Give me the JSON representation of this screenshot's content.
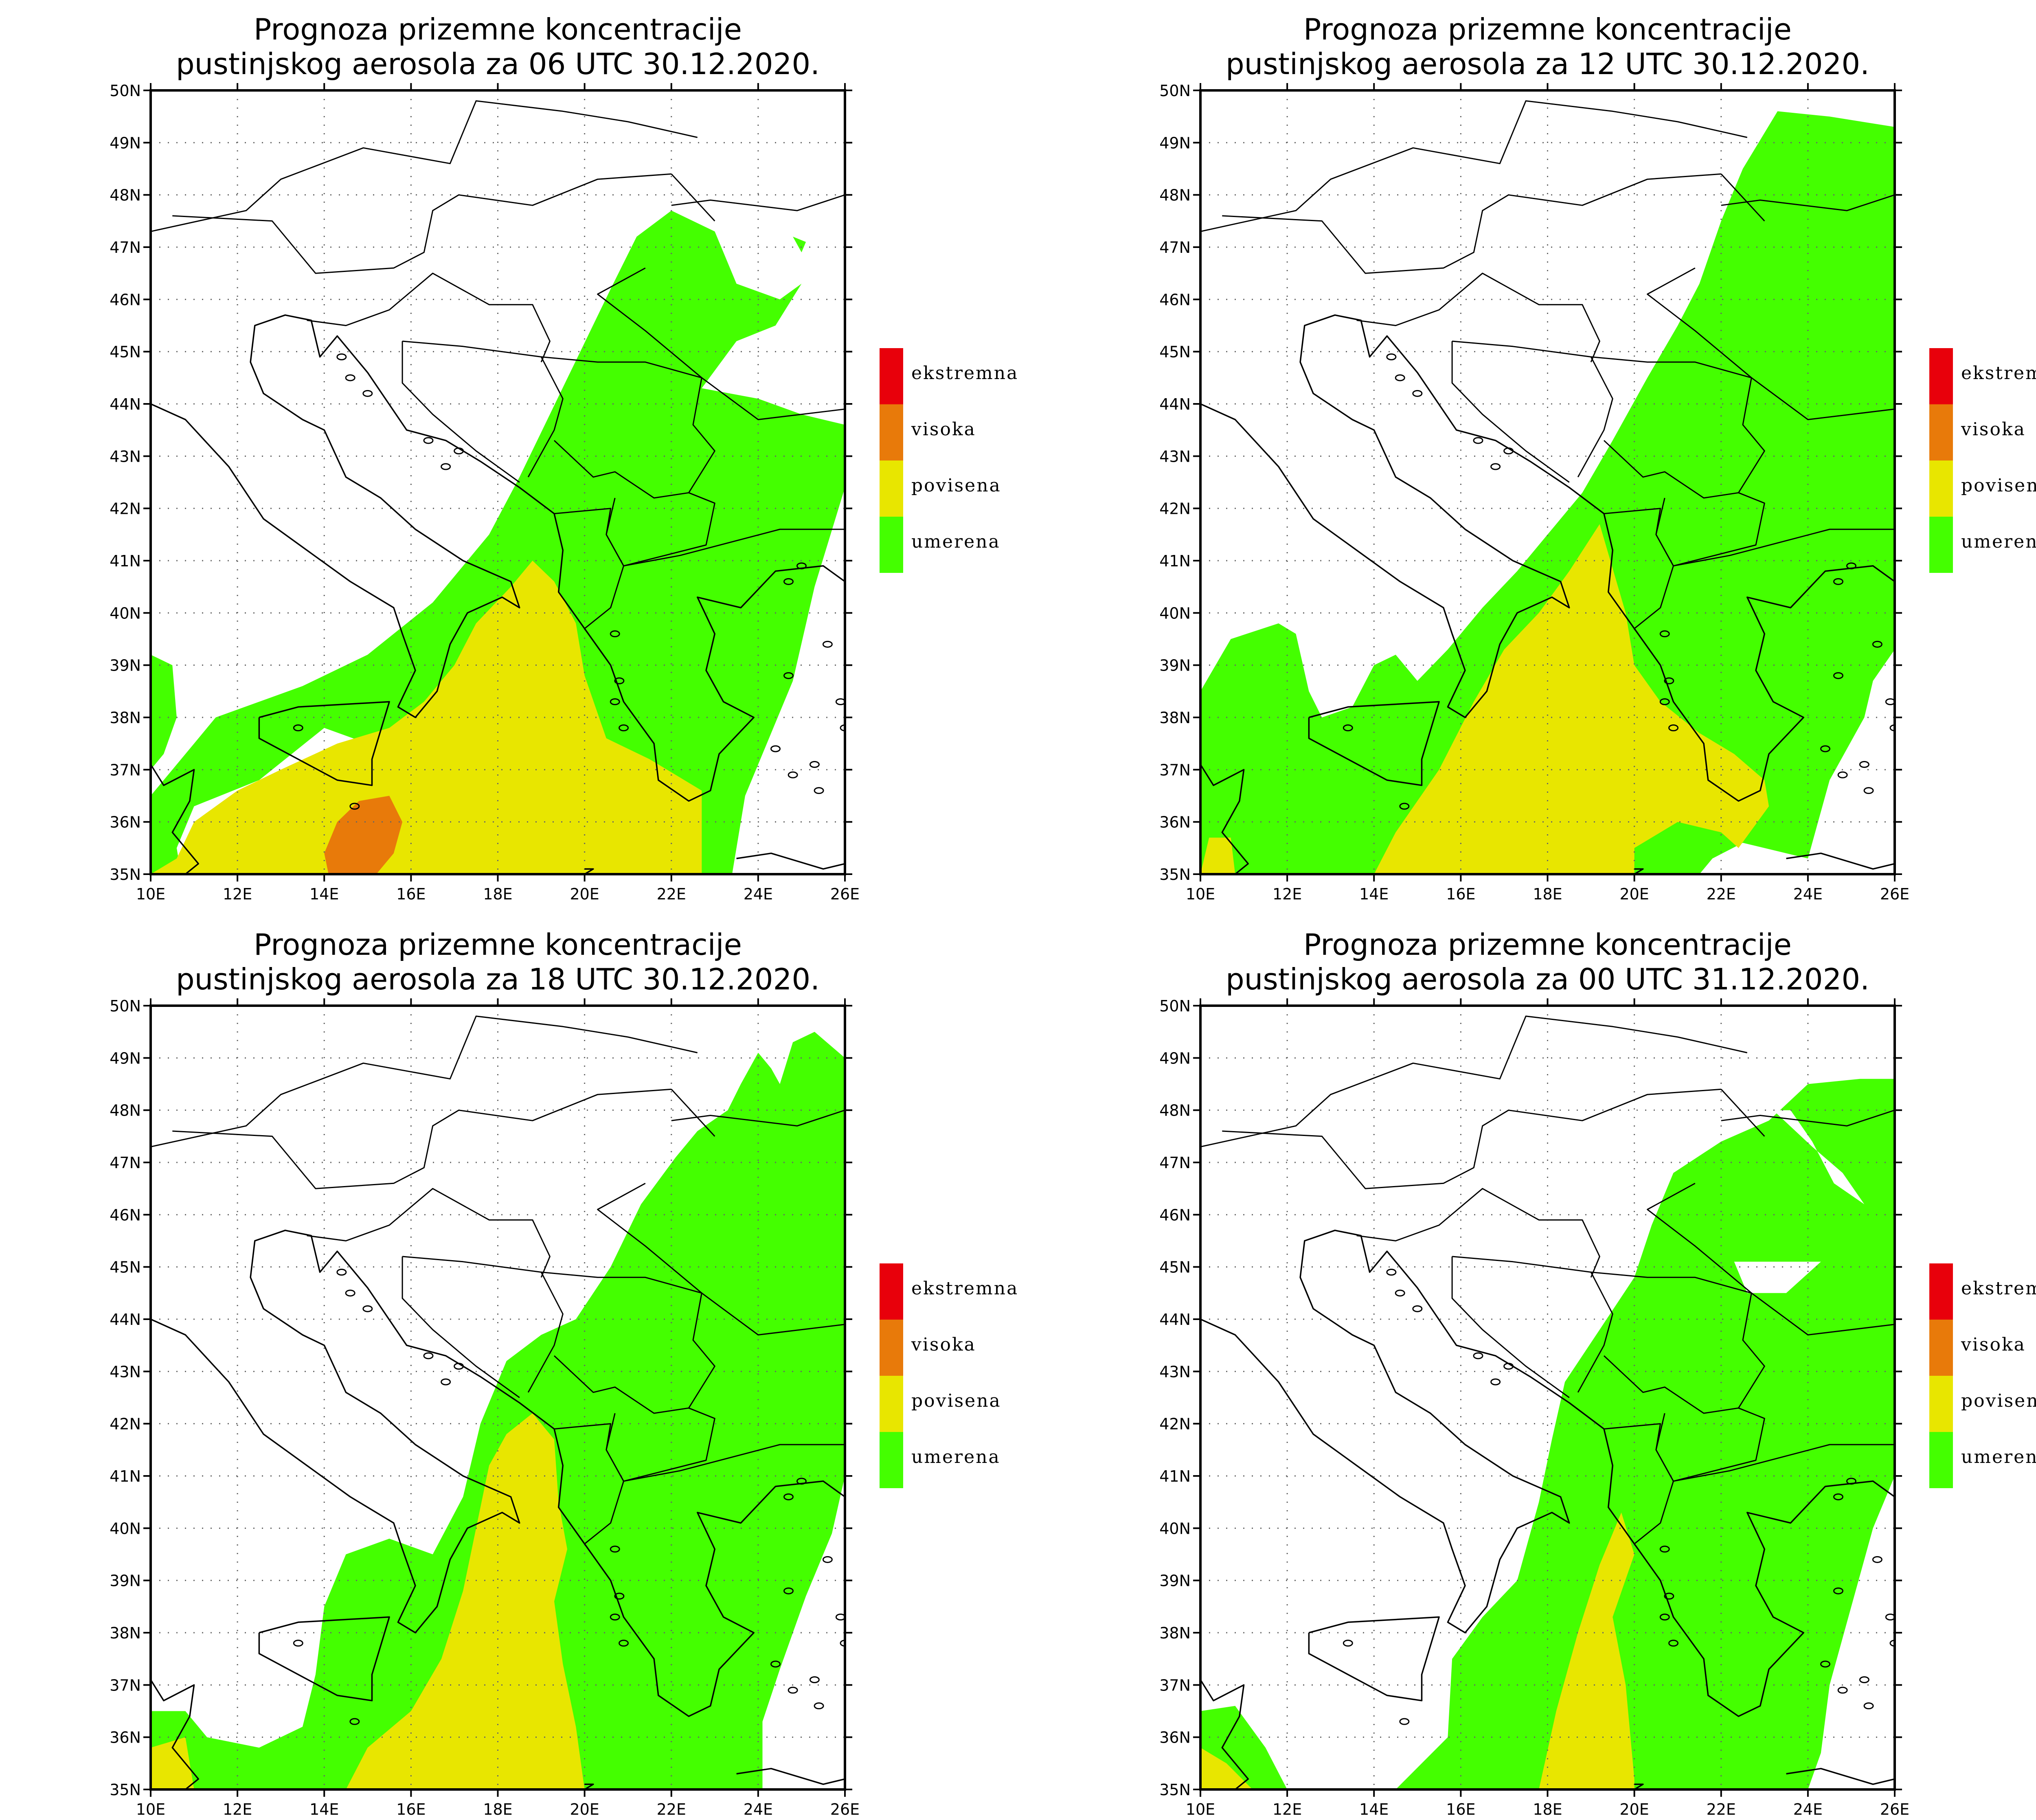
{
  "colors": {
    "ekstremna": "#e8000b",
    "visoka": "#e87a0a",
    "povisena": "#e8e600",
    "umerena": "#44ff00",
    "grid": "#666666",
    "frame": "#000000"
  },
  "axes": {
    "lat_labels": [
      "35N",
      "36N",
      "37N",
      "38N",
      "39N",
      "40N",
      "41N",
      "42N",
      "43N",
      "44N",
      "45N",
      "46N",
      "47N",
      "48N",
      "49N",
      "50N"
    ],
    "lon_labels": [
      "10E",
      "12E",
      "14E",
      "16E",
      "18E",
      "20E",
      "22E",
      "24E",
      "26E"
    ],
    "lon_range": [
      10,
      26
    ],
    "lat_range": [
      35,
      50
    ]
  },
  "legend": {
    "items": [
      {
        "label": "ekstremna",
        "color_key": "ekstremna"
      },
      {
        "label": "visoka",
        "color_key": "visoka"
      },
      {
        "label": "povisena",
        "color_key": "povisena"
      },
      {
        "label": "umerena",
        "color_key": "umerena"
      }
    ]
  },
  "panels": [
    {
      "title_line1": "Prognoza prizemne koncentracije",
      "title_line2": "pustinjskog aerosola za 06 UTC 30.12.2020.",
      "regions": [
        {
          "level": "umerena",
          "points": [
            [
              10,
              39.2
            ],
            [
              10.5,
              39
            ],
            [
              10.6,
              38
            ],
            [
              10.3,
              37.3
            ],
            [
              10,
              37
            ]
          ]
        },
        {
          "level": "umerena",
          "points": [
            [
              10,
              35
            ],
            [
              10,
              36.5
            ],
            [
              11,
              37.5
            ],
            [
              11.5,
              38
            ],
            [
              12.5,
              38.3
            ],
            [
              13.5,
              38.6
            ],
            [
              15,
              39.2
            ],
            [
              16.5,
              40.2
            ],
            [
              17.8,
              41.5
            ],
            [
              18.5,
              42.6
            ],
            [
              19.2,
              43.8
            ],
            [
              19.9,
              45
            ],
            [
              20.6,
              46.2
            ],
            [
              21.2,
              47.2
            ],
            [
              22,
              47.7
            ],
            [
              23,
              47.3
            ],
            [
              23.5,
              46.3
            ],
            [
              24.5,
              46
            ],
            [
              25,
              46.3
            ],
            [
              24.4,
              45.5
            ],
            [
              23.5,
              45.2
            ],
            [
              22.7,
              44.3
            ],
            [
              24,
              44.1
            ],
            [
              25,
              43.8
            ],
            [
              26,
              43.6
            ],
            [
              26,
              42.4
            ],
            [
              25.3,
              40.5
            ],
            [
              24.8,
              38.7
            ],
            [
              23.7,
              36.5
            ],
            [
              23.4,
              35
            ],
            [
              22.6,
              35
            ],
            [
              22.5,
              36.5
            ],
            [
              21,
              36.8
            ],
            [
              19.5,
              37.2
            ],
            [
              18,
              37
            ],
            [
              16.5,
              37
            ],
            [
              15,
              37.5
            ],
            [
              14,
              37.8
            ],
            [
              12.5,
              36.8
            ],
            [
              11,
              36.3
            ],
            [
              10.6,
              35.5
            ],
            [
              10.7,
              35
            ]
          ]
        },
        {
          "level": "umerena",
          "points": [
            [
              24.8,
              47.2
            ],
            [
              25.1,
              47.1
            ],
            [
              25,
              46.9
            ]
          ]
        },
        {
          "level": "povisena",
          "points": [
            [
              10,
              35
            ],
            [
              10.6,
              35.3
            ],
            [
              11,
              36
            ],
            [
              12,
              36.6
            ],
            [
              13,
              37
            ],
            [
              14.3,
              37.5
            ],
            [
              15.5,
              37.8
            ],
            [
              16.3,
              38.3
            ],
            [
              17,
              39
            ],
            [
              17.5,
              39.8
            ],
            [
              18.3,
              40.5
            ],
            [
              18.8,
              41
            ],
            [
              19.3,
              40.6
            ],
            [
              19.8,
              39.8
            ],
            [
              20,
              38.8
            ],
            [
              20.5,
              37.6
            ],
            [
              21.5,
              37.2
            ],
            [
              22.7,
              36.6
            ],
            [
              22.7,
              35
            ],
            [
              10,
              35
            ]
          ]
        },
        {
          "level": "visoka",
          "points": [
            [
              14.1,
              35
            ],
            [
              14,
              35.4
            ],
            [
              14.3,
              36
            ],
            [
              14.8,
              36.4
            ],
            [
              15.5,
              36.5
            ],
            [
              15.8,
              36
            ],
            [
              15.6,
              35.4
            ],
            [
              15.2,
              35
            ]
          ]
        }
      ]
    },
    {
      "title_line1": "Prognoza prizemne koncentracije",
      "title_line2": "pustinjskog aerosola za 12 UTC 30.12.2020.",
      "regions": [
        {
          "level": "umerena",
          "points": [
            [
              10,
              35
            ],
            [
              10,
              38.5
            ],
            [
              10.7,
              39.5
            ],
            [
              11.8,
              39.8
            ],
            [
              12.2,
              39.6
            ],
            [
              12.5,
              38.5
            ],
            [
              12.8,
              38
            ],
            [
              13.5,
              38.2
            ],
            [
              14,
              39
            ],
            [
              14.5,
              39.2
            ],
            [
              15,
              38.7
            ],
            [
              15.7,
              39.3
            ],
            [
              16.5,
              40.1
            ],
            [
              17.3,
              40.8
            ],
            [
              18,
              41.5
            ],
            [
              18.8,
              42.3
            ],
            [
              19.5,
              43.3
            ],
            [
              20.3,
              44.5
            ],
            [
              21,
              45.5
            ],
            [
              21.5,
              46.3
            ],
            [
              22,
              47.5
            ],
            [
              22.5,
              48.5
            ],
            [
              23.3,
              49.6
            ],
            [
              24.5,
              49.5
            ],
            [
              26,
              49.3
            ],
            [
              26,
              39.3
            ],
            [
              25.5,
              38.7
            ],
            [
              25.3,
              38
            ],
            [
              24.5,
              36.8
            ],
            [
              24,
              35.3
            ],
            [
              22.5,
              35.6
            ],
            [
              21.8,
              35.3
            ],
            [
              21.5,
              35
            ],
            [
              10,
              35
            ]
          ]
        },
        {
          "level": "povisena",
          "points": [
            [
              14,
              35
            ],
            [
              14.5,
              35.8
            ],
            [
              15.5,
              37
            ],
            [
              16.3,
              38.3
            ],
            [
              17,
              39.3
            ],
            [
              17.8,
              40
            ],
            [
              18.5,
              40.8
            ],
            [
              19.2,
              41.7
            ],
            [
              19.8,
              40
            ],
            [
              20,
              39
            ],
            [
              20.6,
              38.3
            ],
            [
              21.5,
              37.7
            ],
            [
              22.3,
              37.3
            ],
            [
              23,
              36.8
            ],
            [
              23.1,
              36.3
            ],
            [
              22.4,
              35.5
            ],
            [
              22,
              35.8
            ],
            [
              21,
              36
            ],
            [
              20,
              35.5
            ],
            [
              20,
              35
            ]
          ]
        },
        {
          "level": "povisena",
          "points": [
            [
              10,
              35
            ],
            [
              10.2,
              35.7
            ],
            [
              10.7,
              35.7
            ],
            [
              10.8,
              35
            ]
          ]
        }
      ]
    },
    {
      "title_line1": "Prognoza prizemne koncentracije",
      "title_line2": "pustinjskog aerosola za 18 UTC 30.12.2020.",
      "regions": [
        {
          "level": "umerena",
          "points": [
            [
              10,
              35
            ],
            [
              10,
              36.5
            ],
            [
              10.8,
              36.5
            ],
            [
              11.3,
              36
            ],
            [
              12.5,
              35.8
            ],
            [
              13.5,
              36.2
            ],
            [
              13.8,
              37.2
            ],
            [
              14,
              38.5
            ],
            [
              14.5,
              39.5
            ],
            [
              15.5,
              39.8
            ],
            [
              16.5,
              39.5
            ],
            [
              17.2,
              40.6
            ],
            [
              17.6,
              42
            ],
            [
              18.2,
              43.2
            ],
            [
              19,
              43.7
            ],
            [
              19.8,
              44
            ],
            [
              20.6,
              45
            ],
            [
              21.3,
              46.2
            ],
            [
              22.1,
              47.1
            ],
            [
              22.6,
              47.6
            ],
            [
              23.3,
              48
            ],
            [
              23.6,
              48.5
            ],
            [
              24,
              49.1
            ],
            [
              24.3,
              48.8
            ],
            [
              24.5,
              48.5
            ],
            [
              24.8,
              49.3
            ],
            [
              25.3,
              49.5
            ],
            [
              26,
              49
            ],
            [
              26,
              41
            ],
            [
              25.7,
              39.9
            ],
            [
              25.1,
              38.7
            ],
            [
              24.5,
              37.3
            ],
            [
              24.1,
              36.3
            ],
            [
              24.1,
              35
            ],
            [
              10,
              35
            ]
          ]
        },
        {
          "level": "povisena",
          "points": [
            [
              10,
              35
            ],
            [
              10,
              35.8
            ],
            [
              10.8,
              36
            ],
            [
              11,
              35
            ]
          ]
        },
        {
          "level": "povisena",
          "points": [
            [
              14.5,
              35
            ],
            [
              15,
              35.8
            ],
            [
              16,
              36.5
            ],
            [
              16.7,
              37.5
            ],
            [
              17.2,
              38.8
            ],
            [
              17.5,
              40
            ],
            [
              17.8,
              41.2
            ],
            [
              18.2,
              41.8
            ],
            [
              18.8,
              42.2
            ],
            [
              19.3,
              41.7
            ],
            [
              19.4,
              40.5
            ],
            [
              19.6,
              39.6
            ],
            [
              19.3,
              38.6
            ],
            [
              19.5,
              37.4
            ],
            [
              19.8,
              36.2
            ],
            [
              20,
              35
            ]
          ]
        }
      ]
    },
    {
      "title_line1": "Prognoza prizemne koncentracije",
      "title_line2": "pustinjskog aerosola za 00 UTC 31.12.2020.",
      "regions": [
        {
          "level": "umerena",
          "points": [
            [
              10,
              35
            ],
            [
              10,
              36.5
            ],
            [
              10.8,
              36.6
            ],
            [
              11.5,
              35.8
            ],
            [
              12,
              35
            ],
            [
              10,
              35
            ]
          ]
        },
        {
          "level": "umerena",
          "points": [
            [
              14.5,
              35
            ],
            [
              15.7,
              36
            ],
            [
              15.8,
              37.5
            ],
            [
              16.5,
              38.3
            ],
            [
              17.3,
              39
            ],
            [
              17.8,
              40.5
            ],
            [
              18.1,
              41.7
            ],
            [
              18.4,
              42.8
            ],
            [
              19.2,
              43.8
            ],
            [
              20,
              44.8
            ],
            [
              20.4,
              45.8
            ],
            [
              20.9,
              46.8
            ],
            [
              22,
              47.4
            ],
            [
              23.1,
              47.8
            ],
            [
              24,
              48.5
            ],
            [
              25.2,
              48.6
            ],
            [
              26,
              48.6
            ],
            [
              26,
              41
            ],
            [
              25.5,
              40
            ],
            [
              25,
              38.5
            ],
            [
              24.5,
              37
            ],
            [
              24.3,
              35.7
            ],
            [
              24,
              35
            ],
            [
              14.5,
              35
            ]
          ]
        },
        {
          "level": "povisena",
          "points": [
            [
              10,
              35
            ],
            [
              10,
              35.8
            ],
            [
              10.6,
              35.5
            ],
            [
              11.2,
              35
            ]
          ]
        },
        {
          "level": "povisena",
          "points": [
            [
              17.8,
              35
            ],
            [
              18.2,
              36.5
            ],
            [
              18.7,
              38
            ],
            [
              19.2,
              39.3
            ],
            [
              19.7,
              40.3
            ],
            [
              20,
              39.5
            ],
            [
              19.5,
              38.3
            ],
            [
              19.8,
              37
            ],
            [
              20,
              35.2
            ],
            [
              20,
              35
            ]
          ]
        }
      ],
      "holes": [
        {
          "points": [
            [
              23.2,
              48
            ],
            [
              24.1,
              47.3
            ],
            [
              24.8,
              46.8
            ],
            [
              25.3,
              46.2
            ],
            [
              24.6,
              46.6
            ],
            [
              24.1,
              47.4
            ],
            [
              23.6,
              48
            ]
          ]
        },
        {
          "points": [
            [
              22.3,
              45.1
            ],
            [
              23.6,
              45.1
            ],
            [
              24.3,
              45.1
            ],
            [
              23.5,
              44.5
            ],
            [
              22.6,
              44.5
            ]
          ]
        }
      ]
    }
  ]
}
